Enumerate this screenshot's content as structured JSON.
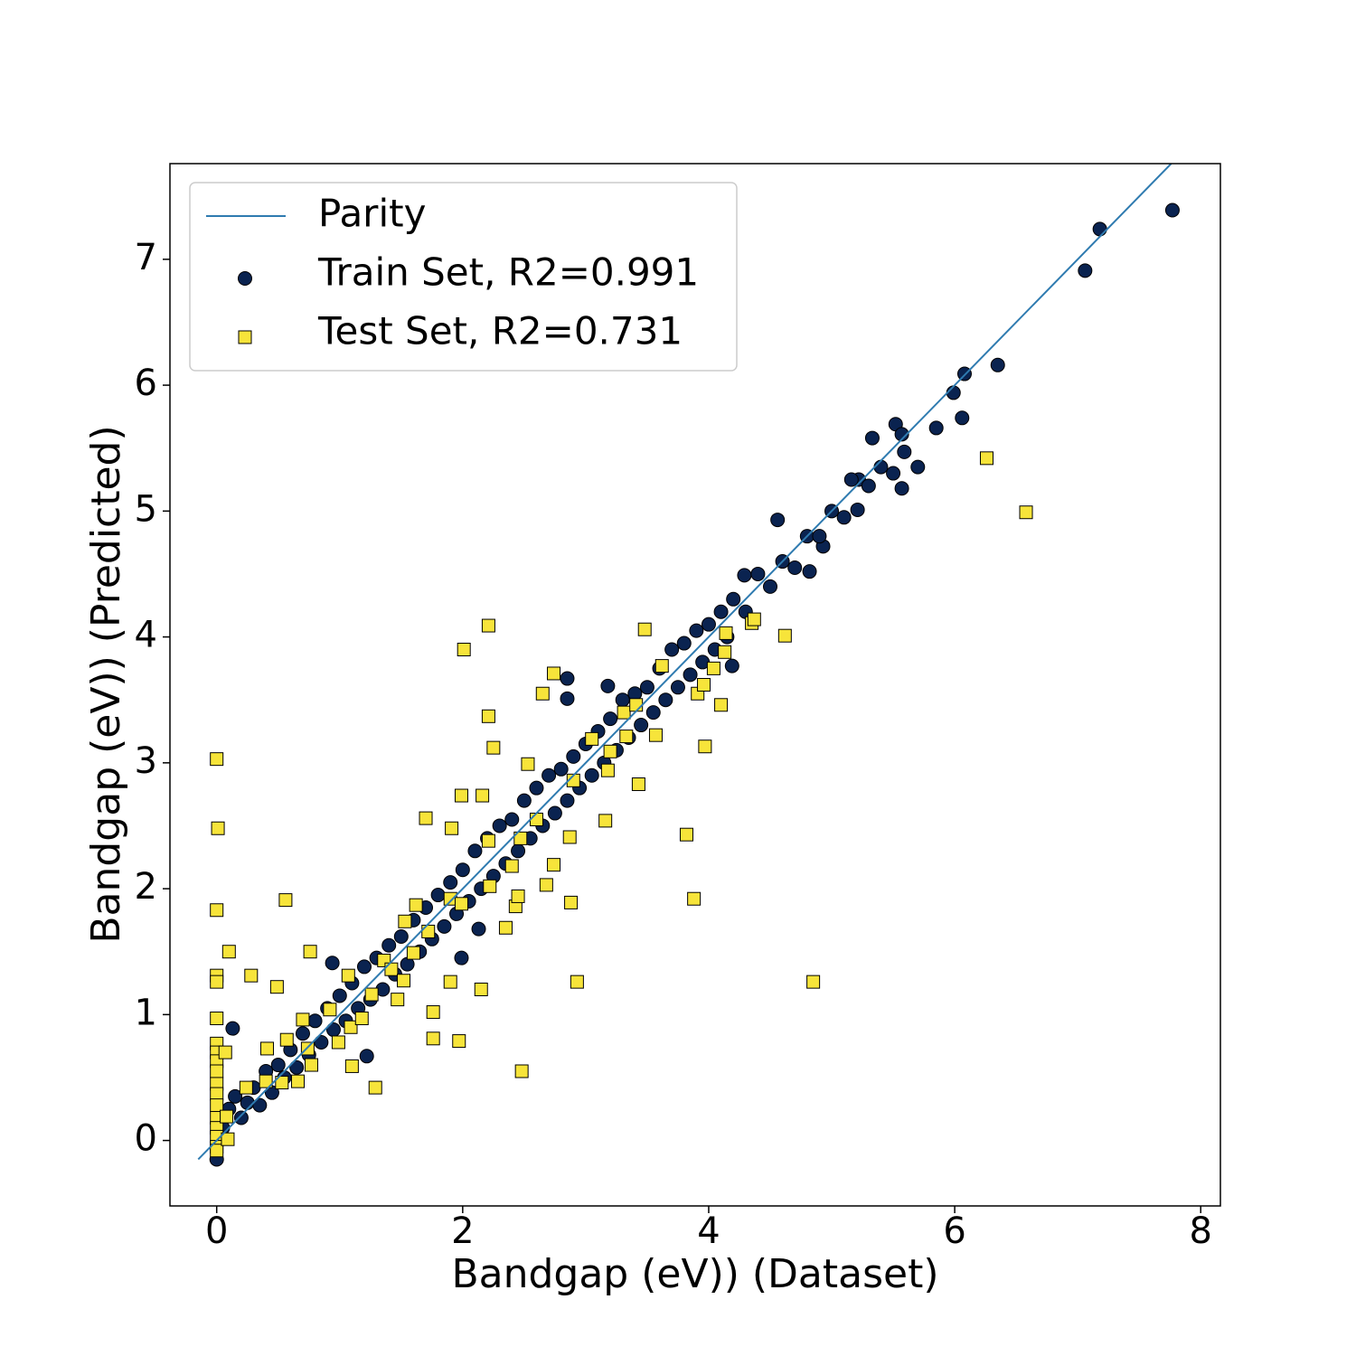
{
  "chart_data": {
    "type": "scatter",
    "xlabel": "Bandgap (eV)) (Dataset)",
    "ylabel": "Bandgap (eV)) (Predicted)",
    "xlim": [
      -0.38,
      8.16
    ],
    "ylim": [
      -0.52,
      7.76
    ],
    "xticks": [
      0,
      2,
      4,
      6,
      8
    ],
    "yticks": [
      0,
      1,
      2,
      3,
      4,
      5,
      6,
      7
    ],
    "legend": "upper left",
    "series": [
      {
        "name": "Parity",
        "type": "line",
        "color": "#2f7bb0",
        "x": [
          -0.15,
          7.76
        ],
        "values": [
          -0.15,
          7.76
        ]
      },
      {
        "name": "Train Set, R2=0.991",
        "type": "scatter",
        "marker": "circle",
        "color": "#0a2350",
        "x": [
          7.77,
          7.18,
          7.06,
          6.35,
          6.08,
          5.99,
          6.06,
          5.85,
          5.7,
          5.52,
          5.57,
          5.33,
          5.57,
          5.59,
          5.22,
          5.16,
          5.21,
          4.93,
          4.56,
          4.82,
          4.29,
          4.19,
          2.85,
          2.85,
          3.18,
          1.99,
          2.13,
          0.13,
          0,
          0.94,
          1.22,
          0.05,
          0.1,
          0.15,
          0.2,
          0.25,
          0.3,
          0.35,
          0.4,
          0.45,
          0.5,
          0.55,
          0.6,
          0.65,
          0.7,
          0.75,
          0.8,
          0.85,
          0.9,
          0.95,
          1.0,
          1.05,
          1.1,
          1.15,
          1.2,
          1.25,
          1.3,
          1.35,
          1.4,
          1.45,
          1.5,
          1.55,
          1.6,
          1.65,
          1.7,
          1.75,
          1.8,
          1.85,
          1.9,
          1.95,
          2.0,
          2.05,
          2.1,
          2.15,
          2.2,
          2.25,
          2.3,
          2.35,
          2.4,
          2.45,
          2.5,
          2.55,
          2.6,
          2.65,
          2.7,
          2.75,
          2.8,
          2.85,
          2.9,
          2.95,
          3.0,
          3.05,
          3.1,
          3.15,
          3.2,
          3.25,
          3.3,
          3.35,
          3.4,
          3.45,
          3.5,
          3.55,
          3.6,
          3.65,
          3.7,
          3.75,
          3.8,
          3.85,
          3.9,
          3.95,
          4.0,
          4.05,
          4.1,
          4.15,
          4.2,
          4.3,
          4.4,
          4.5,
          4.6,
          4.7,
          4.8,
          4.9,
          5.0,
          5.1,
          5.3,
          5.4,
          5.5
        ],
        "values": [
          7.39,
          7.24,
          6.91,
          6.16,
          6.09,
          5.94,
          5.74,
          5.66,
          5.35,
          5.69,
          5.61,
          5.58,
          5.18,
          5.47,
          5.25,
          5.25,
          5.01,
          4.72,
          4.93,
          4.52,
          4.49,
          3.77,
          3.67,
          3.51,
          3.61,
          1.45,
          1.68,
          0.89,
          -0.15,
          1.41,
          0.67,
          0.1,
          0.25,
          0.35,
          0.18,
          0.3,
          0.42,
          0.28,
          0.55,
          0.38,
          0.6,
          0.5,
          0.72,
          0.58,
          0.85,
          0.68,
          0.95,
          0.78,
          1.05,
          0.88,
          1.15,
          0.95,
          1.25,
          1.05,
          1.38,
          1.12,
          1.45,
          1.2,
          1.55,
          1.32,
          1.62,
          1.4,
          1.75,
          1.5,
          1.85,
          1.6,
          1.95,
          1.7,
          2.05,
          1.8,
          2.15,
          1.9,
          2.3,
          2.0,
          2.4,
          2.1,
          2.5,
          2.2,
          2.55,
          2.3,
          2.7,
          2.4,
          2.8,
          2.5,
          2.9,
          2.6,
          2.95,
          2.7,
          3.05,
          2.8,
          3.15,
          2.9,
          3.25,
          3.0,
          3.35,
          3.1,
          3.5,
          3.2,
          3.55,
          3.3,
          3.6,
          3.4,
          3.75,
          3.5,
          3.9,
          3.6,
          3.95,
          3.7,
          4.05,
          3.8,
          4.1,
          3.9,
          4.2,
          4.0,
          4.3,
          4.2,
          4.5,
          4.4,
          4.6,
          4.55,
          4.8,
          4.8,
          5.0,
          4.95,
          5.2,
          5.35,
          5.3
        ]
      },
      {
        "name": "Test Set, R2=0.731",
        "type": "scatter",
        "marker": "square",
        "color": "#f7e43a",
        "x": [
          0,
          0.01,
          0,
          0.1,
          0,
          0,
          0,
          0,
          0,
          0,
          0,
          0,
          0,
          0,
          0,
          0,
          0,
          0,
          0,
          0.07,
          0.09,
          0.08,
          0.24,
          0.28,
          0.49,
          0.56,
          0.76,
          0.41,
          0.4,
          0.53,
          0.57,
          0.66,
          0.7,
          0.77,
          0.74,
          0.92,
          0.99,
          1.07,
          1.1,
          1.09,
          1.18,
          1.26,
          1.29,
          1.36,
          1.47,
          1.42,
          1.53,
          1.52,
          1.62,
          1.6,
          1.7,
          1.72,
          1.76,
          1.76,
          1.91,
          1.9,
          1.9,
          1.97,
          1.99,
          1.99,
          2.01,
          2.15,
          2.16,
          2.21,
          2.21,
          2.21,
          2.25,
          2.22,
          2.35,
          2.4,
          2.43,
          2.45,
          2.48,
          2.47,
          2.53,
          2.6,
          2.65,
          2.68,
          2.74,
          2.74,
          2.87,
          2.88,
          2.9,
          2.93,
          3.05,
          3.16,
          3.18,
          3.2,
          3.31,
          3.33,
          3.41,
          3.43,
          3.48,
          3.57,
          3.62,
          3.82,
          3.88,
          3.91,
          3.97,
          3.96,
          4.04,
          4.1,
          4.13,
          4.14,
          4.35,
          4.37,
          4.62,
          4.85,
          6.26,
          6.58
        ],
        "values": [
          3.03,
          2.48,
          1.83,
          1.5,
          1.31,
          1.26,
          0.97,
          0.77,
          0.7,
          0.63,
          0.55,
          0.45,
          0.37,
          0.28,
          0.18,
          0.1,
          0.03,
          -0.05,
          -0.08,
          0.7,
          0.01,
          0.19,
          0.42,
          1.31,
          1.22,
          1.91,
          1.5,
          0.73,
          0.47,
          0.46,
          0.8,
          0.47,
          0.96,
          0.6,
          0.73,
          1.04,
          0.78,
          1.31,
          0.59,
          0.9,
          0.97,
          1.16,
          0.42,
          1.43,
          1.12,
          1.36,
          1.74,
          1.27,
          1.87,
          1.49,
          2.56,
          1.66,
          1.02,
          0.81,
          2.48,
          1.92,
          1.26,
          0.79,
          2.74,
          1.88,
          3.9,
          1.2,
          2.74,
          4.09,
          3.37,
          2.38,
          3.12,
          2.02,
          1.69,
          2.18,
          1.86,
          1.94,
          0.55,
          2.4,
          2.99,
          2.55,
          3.55,
          2.03,
          2.19,
          3.71,
          2.41,
          1.89,
          2.86,
          1.26,
          3.19,
          2.54,
          2.94,
          3.09,
          3.4,
          3.21,
          3.46,
          2.83,
          4.06,
          3.22,
          3.77,
          2.43,
          1.92,
          3.55,
          3.13,
          3.62,
          3.75,
          3.46,
          3.88,
          4.03,
          4.11,
          4.14,
          4.01,
          1.26,
          5.42,
          4.99
        ]
      }
    ]
  }
}
